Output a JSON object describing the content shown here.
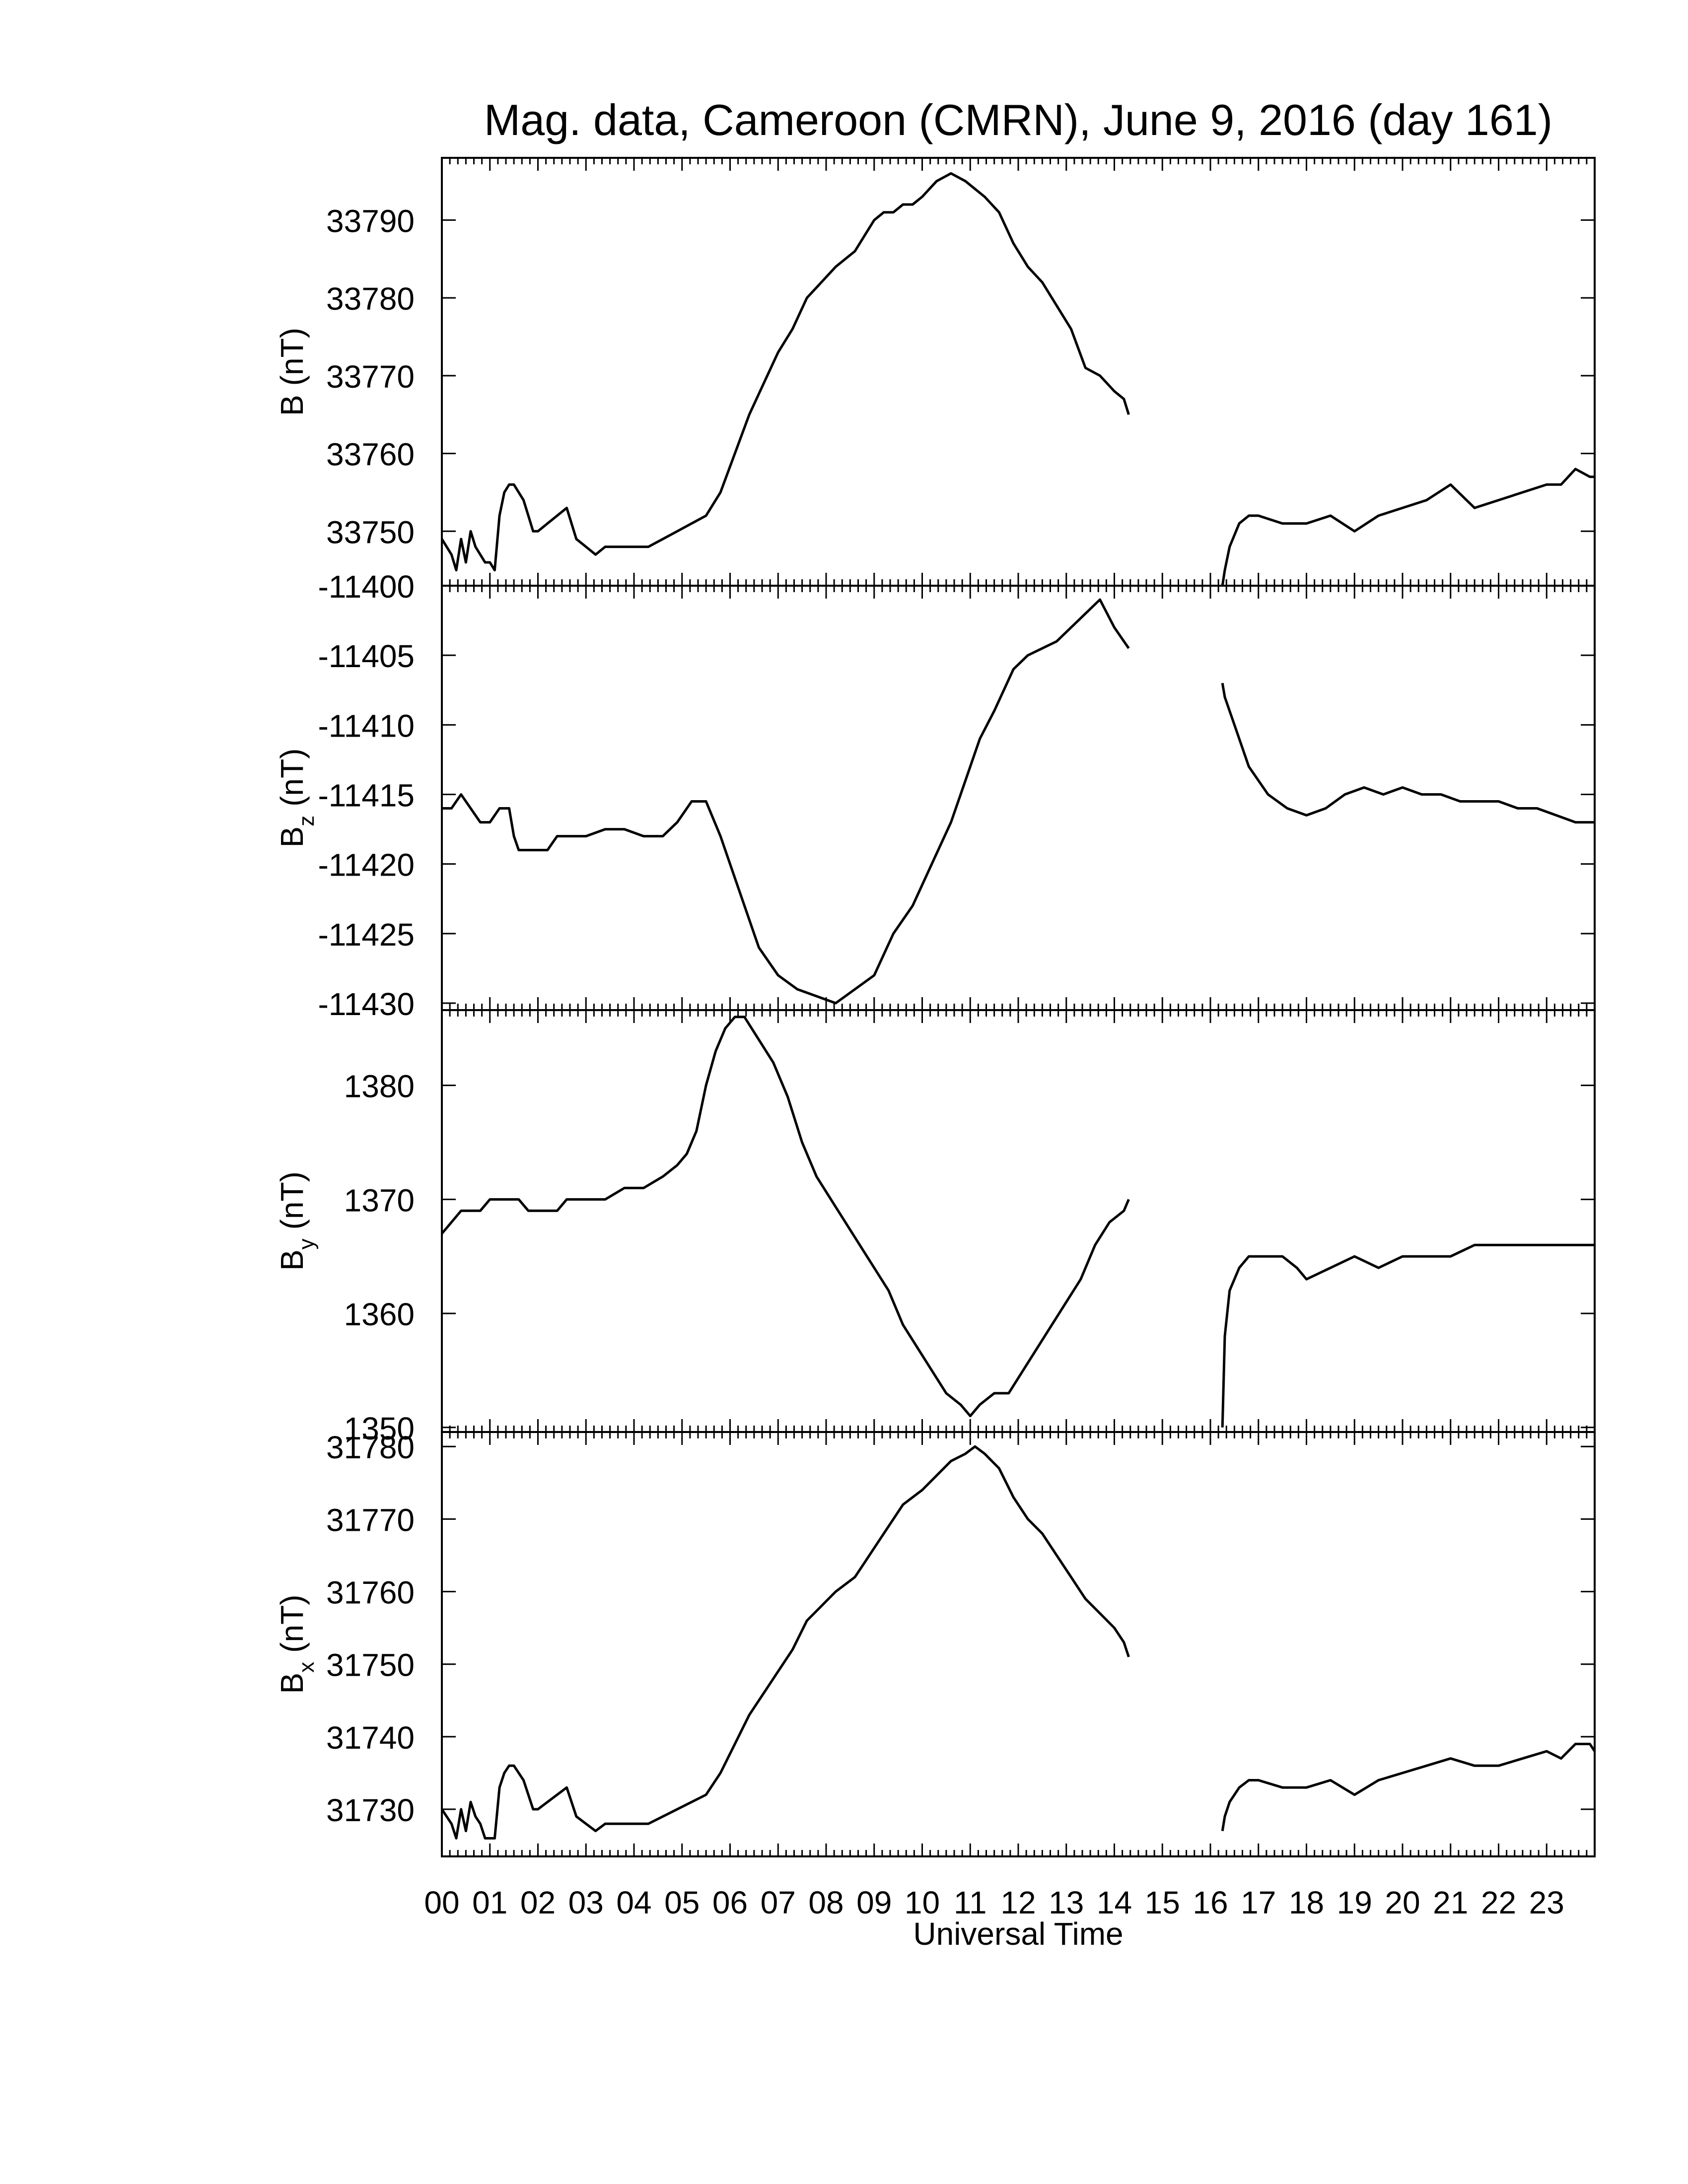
{
  "title": "Mag. data, Cameroon (CMRN), June 9, 2016 (day 161)",
  "xlabel": "Universal Time",
  "x_tick_labels": [
    "00",
    "01",
    "02",
    "03",
    "04",
    "05",
    "06",
    "07",
    "08",
    "09",
    "10",
    "11",
    "12",
    "13",
    "14",
    "15",
    "16",
    "17",
    "18",
    "19",
    "20",
    "21",
    "22",
    "23"
  ],
  "colors": {
    "line": "#000000",
    "axes": "#000000",
    "background": "#ffffff"
  },
  "chart_data": [
    {
      "type": "line",
      "ylabel_main": "B",
      "ylabel_sub": "",
      "ylabel_unit": "(nT)",
      "xlim": [
        0,
        24
      ],
      "ylim": [
        33743,
        33798
      ],
      "yticks": [
        33750,
        33760,
        33770,
        33780,
        33790
      ],
      "gap_hours": [
        14.35,
        16.25
      ],
      "x": [
        0.0,
        0.1,
        0.2,
        0.3,
        0.4,
        0.5,
        0.6,
        0.7,
        0.8,
        0.9,
        1.0,
        1.1,
        1.2,
        1.3,
        1.4,
        1.5,
        1.6,
        1.7,
        1.8,
        1.9,
        2.0,
        2.2,
        2.4,
        2.6,
        2.8,
        3.0,
        3.2,
        3.4,
        3.6,
        3.8,
        4.0,
        4.3,
        4.6,
        4.9,
        5.2,
        5.5,
        5.8,
        6.1,
        6.4,
        6.7,
        7.0,
        7.3,
        7.6,
        7.9,
        8.2,
        8.4,
        8.6,
        8.8,
        9.0,
        9.2,
        9.4,
        9.6,
        9.8,
        10.0,
        10.3,
        10.6,
        10.9,
        11.1,
        11.3,
        11.6,
        11.9,
        12.2,
        12.5,
        12.8,
        13.1,
        13.4,
        13.7,
        14.0,
        14.2,
        14.3,
        16.25,
        16.3,
        16.4,
        16.6,
        16.8,
        17.0,
        17.5,
        18.0,
        18.5,
        19.0,
        19.5,
        20.0,
        20.5,
        21.0,
        21.5,
        22.0,
        22.5,
        23.0,
        23.3,
        23.6,
        23.9,
        24.0
      ],
      "values": [
        33749,
        33748,
        33747,
        33745,
        33749,
        33746,
        33750,
        33748,
        33747,
        33746,
        33746,
        33745,
        33752,
        33755,
        33756,
        33756,
        33755,
        33754,
        33752,
        33750,
        33750,
        33751,
        33752,
        33753,
        33749,
        33748,
        33747,
        33748,
        33748,
        33748,
        33748,
        33748,
        33749,
        33750,
        33751,
        33752,
        33755,
        33760,
        33765,
        33769,
        33773,
        33776,
        33780,
        33782,
        33784,
        33785,
        33786,
        33788,
        33790,
        33791,
        33791,
        33792,
        33792,
        33793,
        33795,
        33796,
        33795,
        33794,
        33793,
        33791,
        33787,
        33784,
        33782,
        33779,
        33776,
        33771,
        33770,
        33768,
        33767,
        33765,
        33743,
        33745,
        33748,
        33751,
        33752,
        33752,
        33751,
        33751,
        33752,
        33750,
        33752,
        33753,
        33754,
        33756,
        33753,
        33754,
        33755,
        33756,
        33756,
        33758,
        33757,
        33757
      ]
    },
    {
      "type": "line",
      "ylabel_main": "B",
      "ylabel_sub": "z",
      "ylabel_unit": "(nT)",
      "xlim": [
        0,
        24
      ],
      "ylim": [
        -11430.5,
        -11400
      ],
      "yticks": [
        -11400,
        -11405,
        -11410,
        -11415,
        -11420,
        -11425,
        -11430
      ],
      "gap_hours": [
        14.35,
        16.25
      ],
      "x": [
        0.0,
        0.2,
        0.4,
        0.6,
        0.8,
        1.0,
        1.2,
        1.4,
        1.5,
        1.6,
        1.8,
        2.0,
        2.2,
        2.4,
        2.6,
        2.8,
        3.0,
        3.4,
        3.8,
        4.2,
        4.6,
        4.9,
        5.2,
        5.5,
        5.8,
        6.2,
        6.6,
        7.0,
        7.4,
        7.8,
        8.2,
        8.6,
        9.0,
        9.4,
        9.8,
        10.2,
        10.6,
        10.9,
        11.2,
        11.5,
        11.9,
        12.2,
        12.5,
        12.8,
        13.1,
        13.4,
        13.7,
        14.0,
        14.2,
        14.3,
        16.25,
        16.3,
        16.5,
        16.8,
        17.2,
        17.6,
        18.0,
        18.4,
        18.8,
        19.2,
        19.6,
        20.0,
        20.4,
        20.8,
        21.2,
        21.6,
        22.0,
        22.4,
        22.8,
        23.2,
        23.6,
        24.0
      ],
      "values": [
        -11416,
        -11416,
        -11415,
        -11416,
        -11417,
        -11417,
        -11416,
        -11416,
        -11418,
        -11419,
        -11419,
        -11419,
        -11419,
        -11418,
        -11418,
        -11418,
        -11418,
        -11417.5,
        -11417.5,
        -11418,
        -11418,
        -11417,
        -11415.5,
        -11415.5,
        -11418,
        -11422,
        -11426,
        -11428,
        -11429,
        -11429.5,
        -11430,
        -11429,
        -11428,
        -11425,
        -11423,
        -11420,
        -11417,
        -11414,
        -11411,
        -11409,
        -11406,
        -11405,
        -11404.5,
        -11404,
        -11403,
        -11402,
        -11401,
        -11403,
        -11404,
        -11404.5,
        -11407,
        -11408,
        -11410,
        -11413,
        -11415,
        -11416,
        -11416.5,
        -11416,
        -11415,
        -11414.5,
        -11415,
        -11414.5,
        -11415,
        -11415,
        -11415.5,
        -11415.5,
        -11415.5,
        -11416,
        -11416,
        -11416.5,
        -11417,
        -11417
      ]
    },
    {
      "type": "line",
      "ylabel_main": "B",
      "ylabel_sub": "y",
      "ylabel_unit": "(nT)",
      "xlim": [
        0,
        24
      ],
      "ylim": [
        1349.6,
        1386.6
      ],
      "yticks": [
        1350,
        1360,
        1370,
        1380
      ],
      "gap_hours": [
        14.35,
        16.25
      ],
      "x": [
        0.0,
        0.2,
        0.4,
        0.6,
        0.8,
        1.0,
        1.2,
        1.4,
        1.6,
        1.8,
        2.0,
        2.2,
        2.4,
        2.6,
        2.8,
        3.0,
        3.4,
        3.8,
        4.2,
        4.6,
        4.9,
        5.1,
        5.3,
        5.5,
        5.7,
        5.9,
        6.1,
        6.3,
        6.6,
        6.9,
        7.2,
        7.5,
        7.8,
        8.1,
        8.4,
        8.7,
        9.0,
        9.3,
        9.6,
        9.9,
        10.2,
        10.5,
        10.8,
        11.0,
        11.2,
        11.5,
        11.8,
        12.1,
        12.4,
        12.7,
        13.0,
        13.3,
        13.6,
        13.9,
        14.2,
        14.3,
        16.25,
        16.3,
        16.4,
        16.6,
        16.8,
        17.0,
        17.2,
        17.5,
        17.8,
        18.0,
        18.5,
        19.0,
        19.5,
        20.0,
        20.5,
        21.0,
        21.5,
        22.0,
        22.5,
        23.0,
        23.5,
        24.0
      ],
      "values": [
        1367,
        1368,
        1369,
        1369,
        1369,
        1370,
        1370,
        1370,
        1370,
        1369,
        1369,
        1369,
        1369,
        1370,
        1370,
        1370,
        1370,
        1371,
        1371,
        1372,
        1373,
        1374,
        1376,
        1380,
        1383,
        1385,
        1386,
        1386,
        1384,
        1382,
        1379,
        1375,
        1372,
        1370,
        1368,
        1366,
        1364,
        1362,
        1359,
        1357,
        1355,
        1353,
        1352,
        1351,
        1352,
        1353,
        1353,
        1355,
        1357,
        1359,
        1361,
        1363,
        1366,
        1368,
        1369,
        1370,
        1350,
        1358,
        1362,
        1364,
        1365,
        1365,
        1365,
        1365,
        1364,
        1363,
        1364,
        1365,
        1364,
        1365,
        1365,
        1365,
        1366,
        1366,
        1366,
        1366,
        1366,
        1366
      ]
    },
    {
      "type": "line",
      "ylabel_main": "B",
      "ylabel_sub": "x",
      "ylabel_unit": "(nT)",
      "xlim": [
        0,
        24
      ],
      "ylim": [
        1723.5,
        1782
      ],
      "y_offset": 30000,
      "yticks": [
        31730,
        31740,
        31750,
        31760,
        31770,
        31780
      ],
      "gap_hours": [
        14.35,
        16.25
      ],
      "x": [
        0.0,
        0.1,
        0.2,
        0.3,
        0.4,
        0.5,
        0.6,
        0.7,
        0.8,
        0.9,
        1.0,
        1.1,
        1.2,
        1.3,
        1.4,
        1.5,
        1.6,
        1.7,
        1.8,
        1.9,
        2.0,
        2.2,
        2.4,
        2.6,
        2.8,
        3.0,
        3.2,
        3.4,
        3.6,
        3.8,
        4.0,
        4.3,
        4.6,
        4.9,
        5.2,
        5.5,
        5.8,
        6.1,
        6.4,
        6.7,
        7.0,
        7.3,
        7.6,
        7.9,
        8.2,
        8.4,
        8.6,
        8.8,
        9.0,
        9.2,
        9.4,
        9.6,
        9.8,
        10.0,
        10.3,
        10.6,
        10.9,
        11.1,
        11.3,
        11.6,
        11.9,
        12.2,
        12.5,
        12.8,
        13.1,
        13.4,
        13.7,
        14.0,
        14.2,
        14.3,
        16.25,
        16.3,
        16.4,
        16.6,
        16.8,
        17.0,
        17.5,
        18.0,
        18.5,
        19.0,
        19.5,
        20.0,
        20.5,
        21.0,
        21.5,
        22.0,
        22.5,
        23.0,
        23.3,
        23.6,
        23.9,
        24.0
      ],
      "values": [
        1730,
        1729,
        1728,
        1726,
        1730,
        1727,
        1731,
        1729,
        1728,
        1726,
        1726,
        1726,
        1733,
        1735,
        1736,
        1736,
        1735,
        1734,
        1732,
        1730,
        1730,
        1731,
        1732,
        1733,
        1729,
        1728,
        1727,
        1728,
        1728,
        1728,
        1728,
        1728,
        1729,
        1730,
        1731,
        1732,
        1735,
        1739,
        1743,
        1746,
        1749,
        1752,
        1756,
        1758,
        1760,
        1761,
        1762,
        1764,
        1766,
        1768,
        1770,
        1772,
        1773,
        1774,
        1776,
        1778,
        1779,
        1780,
        1779,
        1777,
        1773,
        1770,
        1768,
        1765,
        1762,
        1759,
        1757,
        1755,
        1753,
        1751,
        1727,
        1729,
        1731,
        1733,
        1734,
        1734,
        1733,
        1733,
        1734,
        1732,
        1734,
        1735,
        1736,
        1737,
        1736,
        1736,
        1737,
        1738,
        1737,
        1739,
        1739,
        1738
      ]
    }
  ]
}
